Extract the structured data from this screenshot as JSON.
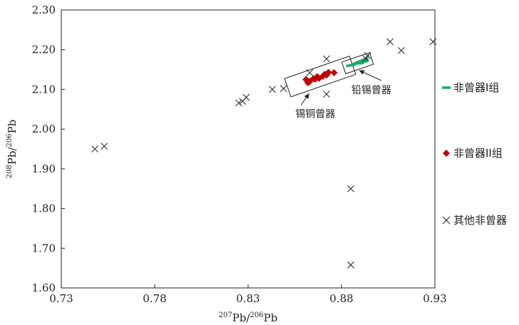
{
  "chart_data": {
    "type": "scatter",
    "xlabel": "207Pb/206Pb",
    "ylabel": "208Pb/206Pb",
    "xlim": [
      0.73,
      0.93
    ],
    "ylim": [
      1.6,
      2.3
    ],
    "x_ticks": [
      "0.73",
      "0.78",
      "0.83",
      "0.88",
      "0.93"
    ],
    "y_ticks": [
      "1.60",
      "1.70",
      "1.80",
      "1.90",
      "2.00",
      "2.10",
      "2.20",
      "2.30"
    ],
    "legend_position": "right",
    "series": [
      {
        "name": "非曾器I组",
        "marker": "dash",
        "color": "#1aaa6e",
        "points": [
          [
            0.884,
            2.16
          ],
          [
            0.886,
            2.162
          ],
          [
            0.887,
            2.164
          ],
          [
            0.888,
            2.166
          ],
          [
            0.889,
            2.168
          ],
          [
            0.89,
            2.17
          ],
          [
            0.891,
            2.172
          ],
          [
            0.892,
            2.174
          ],
          [
            0.893,
            2.176
          ],
          [
            0.8905,
            2.166
          ],
          [
            0.8925,
            2.17
          ]
        ]
      },
      {
        "name": "非曾器II组",
        "marker": "diamond",
        "color": "#c00000",
        "points": [
          [
            0.861,
            2.125
          ],
          [
            0.862,
            2.117
          ],
          [
            0.863,
            2.12
          ],
          [
            0.865,
            2.127
          ],
          [
            0.866,
            2.126
          ],
          [
            0.867,
            2.132
          ],
          [
            0.868,
            2.128
          ],
          [
            0.87,
            2.133
          ],
          [
            0.871,
            2.138
          ],
          [
            0.872,
            2.136
          ],
          [
            0.873,
            2.143
          ],
          [
            0.876,
            2.142
          ]
        ]
      },
      {
        "name": "其他非曾器",
        "marker": "x",
        "color": "#333333",
        "points": [
          [
            0.748,
            1.95
          ],
          [
            0.753,
            1.957
          ],
          [
            0.825,
            2.066
          ],
          [
            0.827,
            2.07
          ],
          [
            0.829,
            2.08
          ],
          [
            0.843,
            2.1
          ],
          [
            0.849,
            2.102
          ],
          [
            0.863,
            2.142
          ],
          [
            0.872,
            2.177
          ],
          [
            0.872,
            2.088
          ],
          [
            0.885,
            1.85
          ],
          [
            0.885,
            1.658
          ],
          [
            0.893,
            2.178
          ],
          [
            0.894,
            2.185
          ],
          [
            0.906,
            2.22
          ],
          [
            0.912,
            2.198
          ],
          [
            0.929,
            2.22
          ]
        ]
      }
    ],
    "annotations": [
      {
        "text": "锡铜曾器",
        "x": 0.866,
        "y": 2.03
      },
      {
        "text": "铅锡曾器",
        "x": 0.896,
        "y": 2.09
      }
    ]
  }
}
